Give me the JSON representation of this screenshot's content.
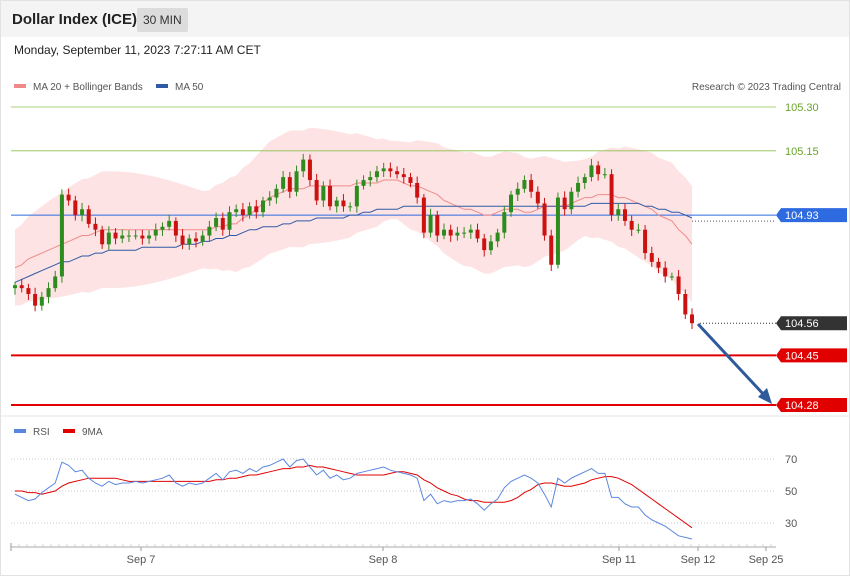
{
  "header": {
    "title": "Dollar Index (ICE)",
    "timeframe": "30 MIN",
    "datetime": "Monday, September 11, 2023 7:27:11 AM CET"
  },
  "copyright": "Research © 2023 Trading Central",
  "colors": {
    "bull": "#2e8b1e",
    "bear": "#cc1111",
    "ma20": "#f08a8a",
    "ma50": "#2e5aa8",
    "band": "#fde0e0",
    "rsi": "#5b86e0",
    "rsi_ma": "#e00000",
    "resistance": "#8cc24a",
    "support": "#e00000",
    "pivot": "#2e6ae0",
    "current": "#333333",
    "arrow": "#2e5a9c"
  },
  "chart_data": [
    {
      "type": "candlestick",
      "title": "Dollar Index (ICE)",
      "timeframe": "30 MIN",
      "legend": [
        {
          "name": "MA 20 + Bollinger Bands",
          "color": "#f08a8a"
        },
        {
          "name": "MA 50",
          "color": "#2e5aa8"
        }
      ],
      "ylim": [
        104.26,
        105.38
      ],
      "x_tick_labels": [
        "Sep 7",
        "Sep 8",
        "Sep 11",
        "Sep 12",
        "Sep 25"
      ],
      "levels": [
        {
          "value": 105.3,
          "label": "105.30",
          "kind": "resistance"
        },
        {
          "value": 105.15,
          "label": "105.15",
          "kind": "resistance"
        },
        {
          "value": 104.93,
          "label": "104.93",
          "kind": "pivot"
        },
        {
          "value": 104.56,
          "label": "104.56",
          "kind": "current"
        },
        {
          "value": 104.45,
          "label": "104.45",
          "kind": "support"
        },
        {
          "value": 104.28,
          "label": "104.28",
          "kind": "support"
        }
      ],
      "candles_close": [
        104.69,
        104.68,
        104.66,
        104.62,
        104.65,
        104.68,
        104.72,
        105.0,
        104.98,
        104.93,
        104.95,
        104.9,
        104.88,
        104.83,
        104.87,
        104.85,
        104.86,
        104.86,
        104.86,
        104.85,
        104.86,
        104.88,
        104.89,
        104.91,
        104.86,
        104.83,
        104.85,
        104.84,
        104.86,
        104.89,
        104.92,
        104.88,
        104.94,
        104.95,
        104.93,
        104.96,
        104.94,
        104.98,
        104.99,
        105.02,
        105.06,
        105.01,
        105.08,
        105.12,
        105.05,
        104.98,
        105.03,
        104.96,
        104.98,
        104.96,
        104.96,
        105.03,
        105.05,
        105.06,
        105.08,
        105.09,
        105.08,
        105.07,
        105.06,
        105.04,
        104.99,
        104.87,
        104.93,
        104.86,
        104.88,
        104.86,
        104.87,
        104.87,
        104.88,
        104.85,
        104.81,
        104.84,
        104.87,
        104.94,
        105.0,
        105.02,
        105.05,
        105.01,
        104.97,
        104.86,
        104.76,
        104.99,
        104.95,
        105.01,
        105.04,
        105.06,
        105.1,
        105.07,
        105.07,
        104.93,
        104.95,
        104.91,
        104.88,
        104.88,
        104.8,
        104.77,
        104.75,
        104.72,
        104.72,
        104.66,
        104.59,
        104.56
      ],
      "ma20_values": [
        104.75,
        104.76,
        104.78,
        104.79,
        104.8,
        104.81,
        104.82,
        104.83,
        104.84,
        104.85,
        104.86,
        104.86,
        104.87,
        104.88,
        104.88,
        104.88,
        104.88,
        104.88,
        104.88,
        104.88,
        104.88,
        104.88,
        104.88,
        104.88,
        104.88,
        104.88,
        104.88,
        104.88,
        104.88,
        104.88,
        104.89,
        104.89,
        104.9,
        104.9,
        104.92,
        104.93,
        104.95,
        104.97,
        104.99,
        105.0,
        105.01,
        105.02,
        105.02,
        105.02,
        105.03,
        105.03,
        105.03,
        105.03,
        105.03,
        105.03,
        105.03,
        105.04,
        105.04,
        105.04,
        105.04,
        105.05,
        105.05,
        105.05,
        105.04,
        105.03,
        105.03,
        105.02,
        105.01,
        105.0,
        104.98,
        104.97,
        104.96,
        104.95,
        104.95,
        104.94,
        104.93,
        104.93,
        104.94,
        104.95,
        104.95,
        104.95,
        104.94,
        104.94,
        104.95,
        104.96,
        104.96,
        104.96,
        104.96,
        104.97,
        104.98,
        104.99,
        104.99,
        105.0,
        105.0,
        105.0,
        104.99,
        104.99,
        104.98,
        104.97,
        104.96,
        104.95,
        104.93,
        104.92,
        104.91,
        104.88,
        104.86,
        104.83
      ],
      "ma50_values": [
        104.7,
        104.71,
        104.72,
        104.73,
        104.74,
        104.75,
        104.76,
        104.77,
        104.77,
        104.78,
        104.79,
        104.79,
        104.8,
        104.8,
        104.81,
        104.81,
        104.81,
        104.81,
        104.81,
        104.82,
        104.82,
        104.82,
        104.82,
        104.82,
        104.82,
        104.83,
        104.83,
        104.83,
        104.84,
        104.84,
        104.85,
        104.85,
        104.86,
        104.86,
        104.87,
        104.88,
        104.88,
        104.89,
        104.89,
        104.89,
        104.9,
        104.9,
        104.91,
        104.91,
        104.91,
        104.92,
        104.92,
        104.92,
        104.92,
        104.92,
        104.93,
        104.93,
        104.94,
        104.94,
        104.95,
        104.95,
        104.95,
        104.95,
        104.96,
        104.96,
        104.96,
        104.96,
        104.96,
        104.96,
        104.96,
        104.96,
        104.96,
        104.96,
        104.96,
        104.96,
        104.96,
        104.96,
        104.96,
        104.96,
        104.96,
        104.96,
        104.96,
        104.96,
        104.96,
        104.96,
        104.96,
        104.96,
        104.96,
        104.96,
        104.96,
        104.96,
        104.97,
        104.97,
        104.97,
        104.97,
        104.97,
        104.97,
        104.97,
        104.97,
        104.96,
        104.96,
        104.95,
        104.95,
        104.94,
        104.94,
        104.93,
        104.92
      ]
    },
    {
      "type": "line",
      "title": "RSI",
      "legend": [
        {
          "name": "RSI",
          "color": "#5b86e0"
        },
        {
          "name": "9MA",
          "color": "#e00000"
        }
      ],
      "ylim": [
        15,
        85
      ],
      "y_ticks": [
        70,
        50,
        30
      ],
      "series": [
        {
          "name": "RSI",
          "values": [
            48,
            46,
            44,
            45,
            49,
            52,
            55,
            68,
            66,
            62,
            63,
            58,
            55,
            53,
            56,
            54,
            55,
            55,
            56,
            55,
            56,
            57,
            58,
            60,
            55,
            53,
            55,
            54,
            55,
            58,
            61,
            57,
            62,
            63,
            61,
            64,
            62,
            65,
            66,
            68,
            70,
            65,
            69,
            70,
            65,
            60,
            63,
            58,
            60,
            57,
            58,
            61,
            62,
            63,
            64,
            65,
            63,
            62,
            61,
            60,
            58,
            44,
            48,
            42,
            44,
            43,
            44,
            44,
            45,
            42,
            38,
            42,
            45,
            52,
            56,
            58,
            60,
            58,
            55,
            48,
            40,
            58,
            55,
            58,
            60,
            62,
            64,
            61,
            61,
            46,
            46,
            42,
            40,
            40,
            35,
            32,
            30,
            28,
            25,
            22,
            21,
            20
          ]
        },
        {
          "name": "9MA",
          "values": [
            50,
            50,
            49,
            49,
            48,
            49,
            50,
            53,
            55,
            56,
            57,
            58,
            58,
            58,
            58,
            58,
            57,
            56,
            56,
            56,
            56,
            56,
            56,
            56,
            56,
            56,
            56,
            56,
            56,
            56,
            57,
            57,
            58,
            58,
            59,
            60,
            60,
            61,
            62,
            63,
            64,
            64,
            65,
            65,
            66,
            65,
            65,
            64,
            63,
            62,
            61,
            60,
            60,
            60,
            60,
            60,
            61,
            62,
            62,
            61,
            60,
            57,
            55,
            52,
            50,
            48,
            47,
            45,
            44,
            44,
            43,
            43,
            43,
            43,
            44,
            46,
            49,
            51,
            54,
            55,
            55,
            54,
            53,
            53,
            54,
            55,
            57,
            58,
            59,
            59,
            58,
            56,
            54,
            51,
            48,
            45,
            42,
            39,
            36,
            33,
            30,
            27
          ]
        }
      ]
    }
  ]
}
